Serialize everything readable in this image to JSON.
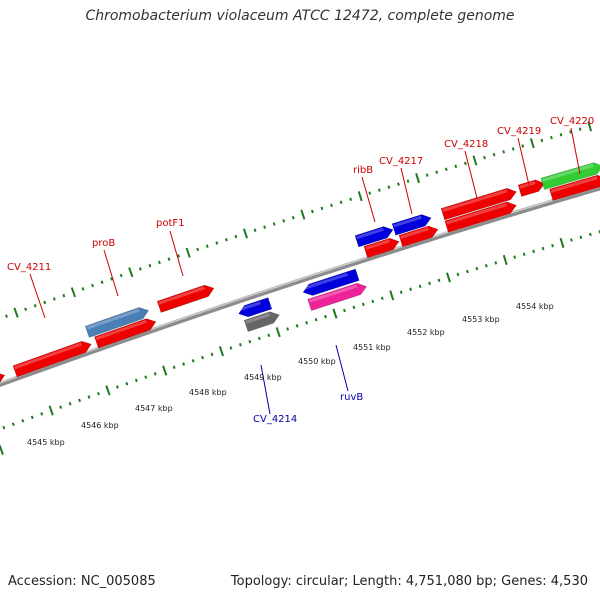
{
  "title": "Chromobacterium violaceum ATCC 12472, complete genome",
  "footer": {
    "accession": "Accession: NC_005085",
    "summary": "Topology: circular; Length: 4,751,080 bp; Genes: 4,530"
  },
  "colors": {
    "backbone": "#8c8c8c",
    "ticks": "#1f7a1f",
    "forward_label": "#cc0000",
    "reverse_label": "#0000aa",
    "red": "#ee0000",
    "blue": "#0000dd",
    "steelblue": "#4a7fb5",
    "green": "#33cc33",
    "gray": "#666666",
    "magenta": "#ee2299"
  },
  "scale_labels": [
    "4545 kbp",
    "4546 kbp",
    "4547 kbp",
    "4548 kbp",
    "4549 kbp",
    "4550 kbp",
    "4551 kbp",
    "4552 kbp",
    "4553 kbp",
    "4554 kbp"
  ],
  "forward_labels": [
    "CV_4211",
    "proB",
    "potF1",
    "ribB",
    "CV_4217",
    "CV_4218",
    "CV_4219",
    "CV_4220"
  ],
  "reverse_labels": [
    "CV_4214",
    "ruvB"
  ],
  "feature_colors": {
    "forward_outer": [
      "blue",
      "steelblue",
      "red",
      "blue",
      "blue",
      "red",
      "red",
      "green"
    ],
    "forward_inner": [
      "red",
      "red",
      "red",
      "red",
      "red",
      "red",
      "red"
    ],
    "reverse_outer": [
      "blue",
      "blue"
    ],
    "reverse_inner": [
      "gray",
      "magenta"
    ]
  }
}
